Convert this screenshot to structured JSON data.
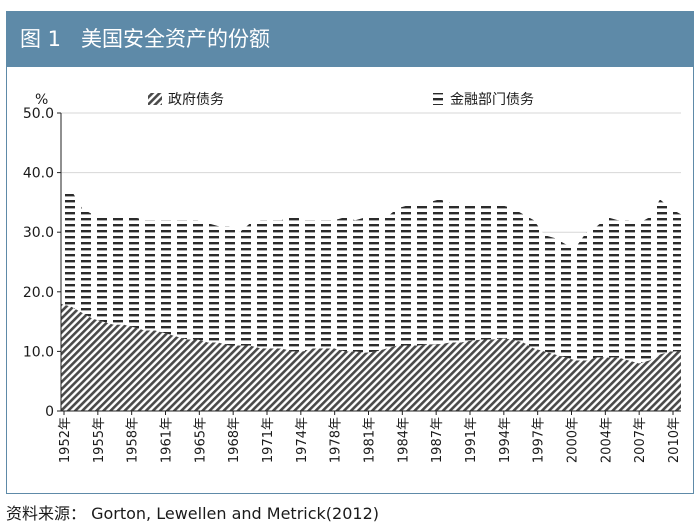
{
  "figure": {
    "title": "图 1   美国安全资产的份额",
    "source": "资料来源： Gorton, Lewellen and Metrick(2012)"
  },
  "colors": {
    "title_bar": "#5e8aa8",
    "government": "#4a4a4a",
    "financial": "#2b2b2b"
  },
  "chart_data": {
    "type": "area",
    "stacked": true,
    "ylabel": "%",
    "ylim": [
      0,
      50
    ],
    "yticks": [
      "0",
      "10.0",
      "20.0",
      "30.0",
      "40.0",
      "50.0"
    ],
    "xtick_labels": [
      "1952年",
      "1955年",
      "1958年",
      "1961年",
      "1965年",
      "1968年",
      "1971年",
      "1974年",
      "1978年",
      "1981年",
      "1984年",
      "1987年",
      "1991年",
      "1994年",
      "1997年",
      "2000年",
      "2004年",
      "2007年",
      "2010年"
    ],
    "legend_position": "top",
    "x": [
      1952,
      1953,
      1954,
      1955,
      1956,
      1957,
      1958,
      1959,
      1960,
      1961,
      1962,
      1963,
      1964,
      1965,
      1966,
      1967,
      1968,
      1969,
      1970,
      1971,
      1972,
      1973,
      1974,
      1975,
      1976,
      1977,
      1978,
      1979,
      1980,
      1981,
      1982,
      1983,
      1984,
      1985,
      1986,
      1987,
      1988,
      1989,
      1990,
      1991,
      1992,
      1993,
      1994,
      1995,
      1996,
      1997,
      1998,
      1999,
      2000,
      2001,
      2002,
      2003,
      2004,
      2005,
      2006,
      2007,
      2008,
      2009,
      2010,
      2011
    ],
    "series": [
      {
        "name": "政府债务",
        "pattern": "diagonal-hatch",
        "values": [
          18.0,
          17.5,
          16.5,
          15.5,
          15.0,
          14.5,
          14.5,
          14.0,
          13.5,
          13.5,
          13.0,
          12.5,
          12.0,
          12.0,
          11.5,
          11.5,
          11.0,
          11.0,
          11.0,
          10.5,
          10.5,
          10.5,
          10.0,
          10.0,
          10.5,
          10.5,
          10.5,
          10.0,
          10.0,
          9.8,
          10.0,
          10.5,
          11.0,
          11.0,
          11.0,
          11.2,
          11.2,
          11.5,
          11.5,
          11.8,
          12.0,
          12.0,
          12.2,
          12.0,
          11.5,
          10.5,
          10.0,
          9.5,
          9.0,
          8.5,
          8.5,
          9.0,
          9.0,
          9.0,
          8.5,
          8.0,
          8.5,
          9.5,
          10.0,
          10.0
        ]
      },
      {
        "name": "金融部门债务",
        "pattern": "dashed",
        "values": [
          19.0,
          19.5,
          17.5,
          17.5,
          17.5,
          18.0,
          18.5,
          18.5,
          18.5,
          18.5,
          19.0,
          19.5,
          20.0,
          20.0,
          20.0,
          19.5,
          20.0,
          19.0,
          20.5,
          21.5,
          21.5,
          21.5,
          23.0,
          22.0,
          21.5,
          21.5,
          21.5,
          22.5,
          22.0,
          22.7,
          22.5,
          22.0,
          23.0,
          23.5,
          23.5,
          23.8,
          24.3,
          23.5,
          23.0,
          22.7,
          22.5,
          22.5,
          22.3,
          22.0,
          21.5,
          21.5,
          19.5,
          19.5,
          19.0,
          19.0,
          21.5,
          22.0,
          23.5,
          23.0,
          23.5,
          23.5,
          24.0,
          26.0,
          24.0,
          23.0
        ]
      }
    ]
  }
}
